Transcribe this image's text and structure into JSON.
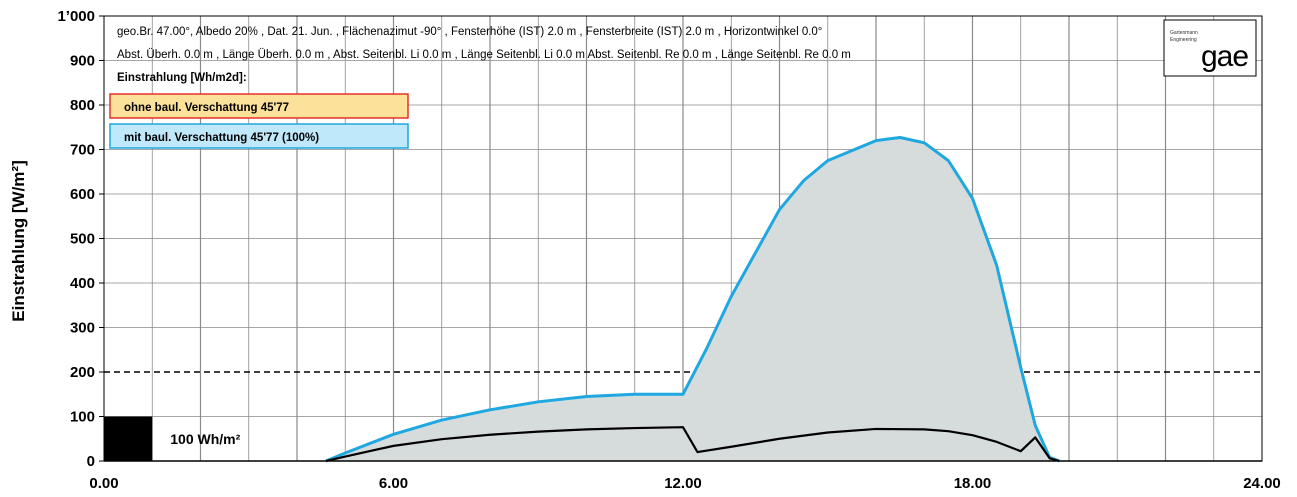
{
  "chart_data": {
    "type": "area",
    "ylabel": "Einstrahlung [W/m²]",
    "xlim": [
      0,
      24
    ],
    "ylim": [
      0,
      1000
    ],
    "x_tick_labels": [
      "0.00",
      "6.00",
      "12.00",
      "18.00",
      "24.00"
    ],
    "x_tick_values": [
      0,
      6,
      12,
      18,
      24
    ],
    "y_tick_labels": [
      "1’000",
      "900",
      "800",
      "700",
      "600",
      "500",
      "400",
      "300",
      "200",
      "100",
      "0"
    ],
    "y_tick_values": [
      1000,
      900,
      800,
      700,
      600,
      500,
      400,
      300,
      200,
      100,
      0
    ],
    "grid": true,
    "reference_line": 200,
    "info_lines": [
      "geo.Br. 47.00°, Albedo 20% , Dat. 21.  Jun.  , Flächenazimut  -90° , Fensterhöhe (IST) 2.0 m , Fensterbreite (IST) 2.0 m , Horizontwinkel 0.0°",
      "Abst. Überh. 0.0 m , Länge Überh. 0.0 m , Abst. Seitenbl. Li 0.0 m , Länge Seitenbl. Li 0.0 m  Abst. Seitenbl. Re 0.0 m , Länge Seitenbl. Re 0.0 m"
    ],
    "legend_title": "Einstrahlung [Wh/m2d]:",
    "scale_box_label": "100 Wh/m²",
    "scale_box": {
      "x": [
        0,
        1
      ],
      "y": [
        0,
        100
      ]
    },
    "series": [
      {
        "name": "ohne baul. Verschattung 45'77",
        "color": "#1fa7e0",
        "legend_bg": "#fbe19a",
        "legend_border": "#e8312a",
        "fill": "#d6dcdc",
        "x": [
          4.6,
          5.0,
          6.0,
          7.0,
          8.0,
          9.0,
          10.0,
          11.0,
          12.0,
          12.5,
          13.0,
          14.0,
          14.5,
          15.0,
          16.0,
          16.5,
          17.0,
          17.5,
          18.0,
          18.5,
          19.0,
          19.3,
          19.6,
          19.8
        ],
        "y": [
          0,
          18,
          60,
          92,
          115,
          133,
          145,
          150,
          150,
          255,
          370,
          565,
          630,
          675,
          720,
          727,
          715,
          675,
          590,
          440,
          210,
          80,
          8,
          0
        ]
      },
      {
        "name": "mit baul. Verschattung 45'77 (100%)",
        "color": "#000000",
        "legend_bg": "#bfe8fb",
        "legend_border": "#1fa7e0",
        "x": [
          4.6,
          5.0,
          6.0,
          7.0,
          8.0,
          9.0,
          10.0,
          11.0,
          12.0,
          12.3,
          13.0,
          14.0,
          15.0,
          16.0,
          17.0,
          17.5,
          18.0,
          18.5,
          19.0,
          19.3,
          19.6,
          19.8
        ],
        "y": [
          0,
          10,
          34,
          49,
          59,
          66,
          71,
          74,
          76,
          20,
          32,
          50,
          64,
          72,
          71,
          67,
          58,
          43,
          22,
          53,
          6,
          0
        ]
      }
    ]
  },
  "logo": {
    "small_text_1": "Gartenmann",
    "small_text_2": "Engineering",
    "big_text": "gae"
  }
}
